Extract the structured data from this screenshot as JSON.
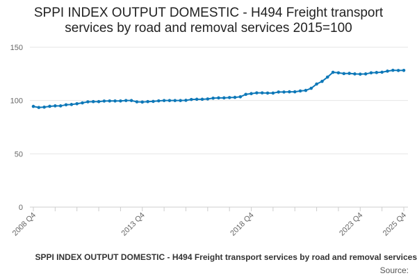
{
  "chart_data": {
    "type": "line",
    "title_line1": "SPPI INDEX OUTPUT DOMESTIC - H494 Freight transport",
    "title_line2": "services by road and removal services 2015=100",
    "xlabel": "",
    "ylabel": "",
    "ylim": [
      0,
      150
    ],
    "yticks": [
      "0",
      "50",
      "100",
      "150"
    ],
    "xtick_labels": [
      "2008 Q4",
      "2013 Q4",
      "2018 Q4",
      "2023 Q4",
      "2025 Q4"
    ],
    "grid": true,
    "series": [
      {
        "name": "SPPI INDEX OUTPUT DOMESTIC - H494 Freight transport services by road and removal services",
        "color": "#0e78b8",
        "x": [
          "2008 Q4",
          "2009 Q1",
          "2009 Q2",
          "2009 Q3",
          "2009 Q4",
          "2010 Q1",
          "2010 Q2",
          "2010 Q3",
          "2010 Q4",
          "2011 Q1",
          "2011 Q2",
          "2011 Q3",
          "2011 Q4",
          "2012 Q1",
          "2012 Q2",
          "2012 Q3",
          "2012 Q4",
          "2013 Q1",
          "2013 Q2",
          "2013 Q3",
          "2013 Q4",
          "2014 Q1",
          "2014 Q2",
          "2014 Q3",
          "2014 Q4",
          "2015 Q1",
          "2015 Q2",
          "2015 Q3",
          "2015 Q4",
          "2016 Q1",
          "2016 Q2",
          "2016 Q3",
          "2016 Q4",
          "2017 Q1",
          "2017 Q2",
          "2017 Q3",
          "2017 Q4",
          "2018 Q1",
          "2018 Q2",
          "2018 Q3",
          "2018 Q4",
          "2019 Q1",
          "2019 Q2",
          "2019 Q3",
          "2019 Q4",
          "2020 Q1",
          "2020 Q2",
          "2020 Q3",
          "2020 Q4",
          "2021 Q1",
          "2021 Q2",
          "2021 Q3",
          "2021 Q4",
          "2022 Q1",
          "2022 Q2",
          "2022 Q3",
          "2022 Q4",
          "2023 Q1",
          "2023 Q2",
          "2023 Q3",
          "2023 Q4",
          "2024 Q1",
          "2024 Q2",
          "2024 Q3",
          "2024 Q4",
          "2025 Q1",
          "2025 Q2",
          "2025 Q3",
          "2025 Q4"
        ],
        "values": [
          94.5,
          93.5,
          93.8,
          94.6,
          95.0,
          95.0,
          96.0,
          96.3,
          97.0,
          97.8,
          98.8,
          99.0,
          99.0,
          99.5,
          99.6,
          99.6,
          99.6,
          100.0,
          100.0,
          98.8,
          98.6,
          99.0,
          99.2,
          99.7,
          100.0,
          100.0,
          100.0,
          100.0,
          100.2,
          101.0,
          101.2,
          101.2,
          101.5,
          102.2,
          102.5,
          102.5,
          102.8,
          103.0,
          103.5,
          105.8,
          106.5,
          107.2,
          107.2,
          107.0,
          107.0,
          108.0,
          108.0,
          108.2,
          108.2,
          109.0,
          109.5,
          111.5,
          115.5,
          118.0,
          122.0,
          126.5,
          126.0,
          125.3,
          125.5,
          125.0,
          124.8,
          125.0,
          126.0,
          126.3,
          126.6,
          127.6,
          128.4,
          128.2,
          128.3
        ]
      }
    ]
  },
  "legend_text": "SPPI INDEX OUTPUT DOMESTIC - H494 Freight transport services by road and removal services",
  "source_label": "Source:"
}
